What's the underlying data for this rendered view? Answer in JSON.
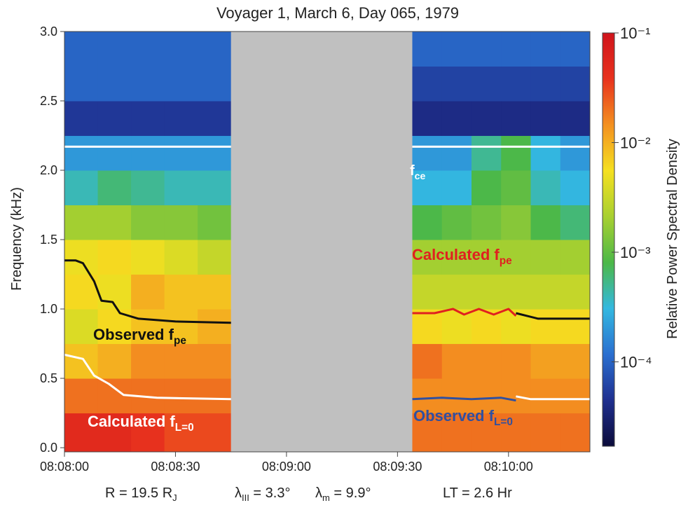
{
  "chart_data": {
    "type": "spectrogram",
    "title": "Voyager 1, March 6, Day 065, 1979",
    "y_label": "Frequency (kHz)",
    "colorbar_label": "Relative Power Spectral Density",
    "x_edges": [
      "08:08:00",
      "08:08:09",
      "08:08:18",
      "08:08:27",
      "08:08:36",
      "08:08:45",
      "08:09:34",
      "08:09:42",
      "08:09:50",
      "08:09:58",
      "08:10:06",
      "08:10:14",
      "08:10:22"
    ],
    "y_edges": [
      -0.03,
      0.25,
      0.5,
      0.75,
      1.0,
      1.25,
      1.5,
      1.75,
      2.0,
      2.25,
      2.5,
      2.75,
      3.0
    ],
    "z": [
      [
        0.05,
        0.05,
        0.04,
        0.03,
        0.03,
        null,
        0.02,
        0.02,
        0.02,
        0.02,
        0.02,
        0.02
      ],
      [
        0.02,
        0.02,
        0.02,
        0.02,
        0.02,
        null,
        0.015,
        0.015,
        0.015,
        0.015,
        0.015,
        0.015
      ],
      [
        0.008,
        0.01,
        0.015,
        0.015,
        0.015,
        null,
        0.02,
        0.015,
        0.015,
        0.015,
        0.012,
        0.012
      ],
      [
        0.004,
        0.006,
        0.008,
        0.008,
        0.01,
        null,
        0.006,
        0.005,
        0.006,
        0.005,
        0.006,
        0.006
      ],
      [
        0.006,
        0.005,
        0.01,
        0.008,
        0.008,
        null,
        0.003,
        0.003,
        0.003,
        0.003,
        0.003,
        0.003
      ],
      [
        0.005,
        0.006,
        0.005,
        0.004,
        0.003,
        null,
        0.002,
        0.002,
        0.002,
        0.002,
        0.002,
        0.002
      ],
      [
        0.002,
        0.002,
        0.0015,
        0.0015,
        0.0012,
        null,
        0.0008,
        0.001,
        0.0012,
        0.0015,
        0.0008,
        0.0006
      ],
      [
        0.0004,
        0.0006,
        0.0005,
        0.0004,
        0.0004,
        null,
        0.0003,
        0.0003,
        0.0008,
        0.001,
        0.0004,
        0.0003
      ],
      [
        0.0002,
        0.0002,
        0.0002,
        0.0002,
        0.0002,
        null,
        0.0002,
        0.0002,
        0.0005,
        0.0008,
        0.0003,
        0.0002
      ],
      [
        5e-05,
        5e-05,
        5e-05,
        5e-05,
        5e-05,
        null,
        4e-05,
        4e-05,
        4e-05,
        4e-05,
        4e-05,
        4e-05
      ],
      [
        0.0001,
        0.0001,
        0.0001,
        0.0001,
        0.0001,
        null,
        6e-05,
        6e-05,
        6e-05,
        6e-05,
        6e-05,
        6e-05
      ],
      [
        0.0001,
        0.0001,
        0.0001,
        0.0001,
        0.0001,
        null,
        0.0001,
        0.0001,
        0.0001,
        0.0001,
        0.0001,
        0.0001
      ]
    ],
    "xlim": [
      "08:08:00",
      "08:10:22"
    ],
    "xticks": [
      "08:08:00",
      "08:08:30",
      "08:09:00",
      "08:09:30",
      "08:10:00"
    ],
    "ylim": [
      -0.03,
      3.0
    ],
    "yticks": [
      {
        "value": 0,
        "label": "0.0"
      },
      0.5,
      {
        "value": 1,
        "label": "1.0"
      },
      1.5,
      {
        "value": 2,
        "label": "2.0"
      },
      2.5,
      {
        "value": 3,
        "label": "3.0"
      }
    ],
    "color_scale": "log",
    "clim": [
      1.7e-05,
      0.1
    ],
    "cticks": [
      {
        "value": 0.1,
        "label": "10⁻¹"
      },
      {
        "value": 0.01,
        "label": "10⁻²"
      },
      {
        "value": 0.001,
        "label": "10⁻³"
      },
      {
        "value": 0.0001,
        "label": "10⁻⁴"
      }
    ],
    "colormap": [
      "#0b0b3a",
      "#1f2f8f",
      "#2a6fd0",
      "#33b8e0",
      "#4cb848",
      "#a8d030",
      "#f5e020",
      "#f39020",
      "#e8321e",
      "#d0141c"
    ],
    "gap_color": "#c0c0c0",
    "lines": [
      {
        "label": "f",
        "label_sub": "ce",
        "color": "#ffffff",
        "x": [
          "08:08:00",
          "08:08:45",
          "08:09:00",
          "08:09:34",
          "08:10:22"
        ],
        "values": [
          2.17,
          2.17,
          null,
          2.17,
          2.17
        ]
      },
      {
        "label": "Observed f",
        "label_sub": "pe",
        "color": "#111111",
        "x": [
          "08:08:00",
          "08:08:03",
          "08:08:05",
          "08:08:08",
          "08:08:10",
          "08:08:13",
          "08:08:15",
          "08:08:20",
          "08:08:30",
          "08:08:45",
          "08:09:00",
          "08:10:02",
          "08:10:08",
          "08:10:22"
        ],
        "values": [
          1.35,
          1.35,
          1.33,
          1.2,
          1.06,
          1.05,
          0.97,
          0.93,
          0.91,
          0.9,
          null,
          0.97,
          0.93,
          0.93
        ]
      },
      {
        "label": "Calculated f",
        "label_sub": "pe",
        "color": "#e02020",
        "x": [
          "08:09:34",
          "08:09:40",
          "08:09:45",
          "08:09:48",
          "08:09:52",
          "08:09:56",
          "08:10:00",
          "08:10:02"
        ],
        "values": [
          0.97,
          0.97,
          1.0,
          0.96,
          1.0,
          0.96,
          1.0,
          0.95
        ]
      },
      {
        "label": "Calculated f",
        "label_sub": "L=0",
        "color": "#ffffff",
        "x": [
          "08:08:00",
          "08:08:05",
          "08:08:08",
          "08:08:12",
          "08:08:16",
          "08:08:25",
          "08:08:45",
          "08:09:00",
          "08:10:02",
          "08:10:06",
          "08:10:22"
        ],
        "values": [
          0.67,
          0.64,
          0.52,
          0.46,
          0.38,
          0.36,
          0.35,
          null,
          0.37,
          0.35,
          0.35
        ]
      },
      {
        "label": "Observed f",
        "label_sub": "L=0",
        "color": "#3050a0",
        "x": [
          "08:09:34",
          "08:09:42",
          "08:09:50",
          "08:09:58",
          "08:10:02"
        ],
        "values": [
          0.35,
          0.36,
          0.35,
          0.36,
          0.34
        ]
      }
    ],
    "footer": [
      {
        "text": "R = 19.5 R",
        "sub": "J",
        "after": ""
      },
      {
        "text": "λ",
        "sub": "III",
        "after": " = 3.3°"
      },
      {
        "text": "λ",
        "sub": "m",
        "after": " = 9.9°"
      },
      {
        "text": "LT = 2.6 Hr",
        "sub": "",
        "after": ""
      }
    ]
  }
}
